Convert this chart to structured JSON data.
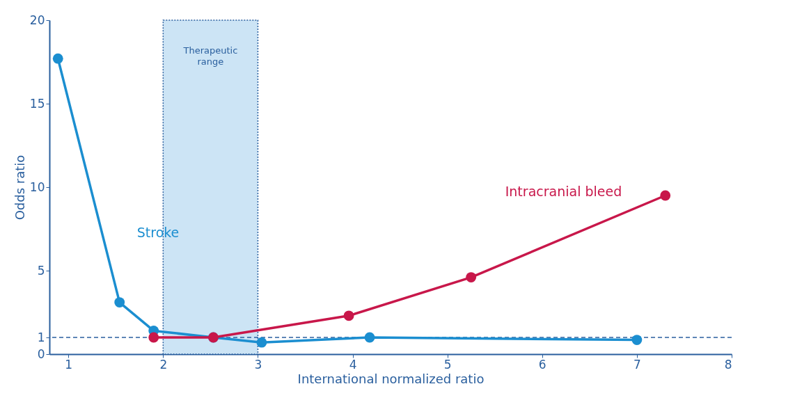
{
  "chart_data": {
    "type": "line",
    "xlabel": "International normalized ratio",
    "ylabel": "Odds ratio",
    "xlim": [
      0.8,
      8
    ],
    "xticks": [
      1,
      2,
      3,
      4,
      5,
      6,
      7,
      8
    ],
    "ylim": [
      0,
      20
    ],
    "yticks": [
      0,
      1,
      5,
      10,
      15,
      20
    ],
    "series": [
      {
        "name": "Stroke",
        "color": "#1b8ed0",
        "x": [
          0.89,
          1.54,
          1.9,
          2.53,
          3.04,
          4.18,
          7.0
        ],
        "values": [
          17.7,
          3.1,
          1.4,
          1.0,
          0.7,
          1.0,
          0.85
        ]
      },
      {
        "name": "Intracranial bleed",
        "color": "#c8174a",
        "x": [
          1.9,
          2.53,
          3.96,
          5.25,
          7.3
        ],
        "values": [
          1.0,
          1.0,
          2.3,
          4.6,
          9.5
        ]
      }
    ],
    "bands": [
      {
        "axis": "x",
        "from": 2,
        "to": 3,
        "label": "Therapeutic range",
        "color": "#cce4f5"
      }
    ],
    "ref_lines": [
      {
        "axis": "y",
        "value": 1,
        "color": "#2a5f9e",
        "line_style": "dashed"
      }
    ],
    "marker": "circle",
    "line_style": "solid",
    "grid": false
  }
}
